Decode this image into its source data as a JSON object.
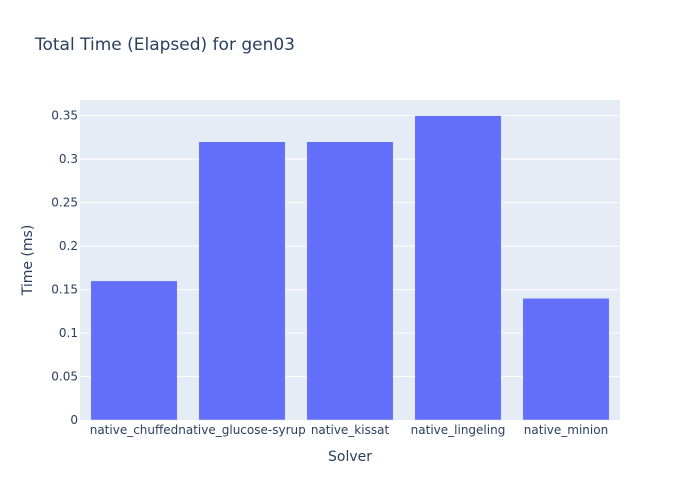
{
  "chart_data": {
    "type": "bar",
    "title": "Total Time (Elapsed) for gen03",
    "xlabel": "Solver",
    "ylabel": "Time (ms)",
    "categories": [
      "native_chuffed",
      "native_glucose-syrup",
      "native_kissat",
      "native_lingeling",
      "native_minion"
    ],
    "values": [
      0.16,
      0.32,
      0.32,
      0.35,
      0.14
    ],
    "ylim": [
      0,
      0.368
    ],
    "yticks": [
      0,
      0.05,
      0.1,
      0.15,
      0.2,
      0.25,
      0.3,
      0.35
    ],
    "ytick_labels": [
      "0",
      "0.05",
      "0.1",
      "0.15",
      "0.2",
      "0.25",
      "0.3",
      "0.35"
    ],
    "grid": true,
    "legend": "none",
    "colors": {
      "bar": "#636efa",
      "plot_background": "#e5ecf6",
      "text": "#2a3f5f"
    }
  }
}
